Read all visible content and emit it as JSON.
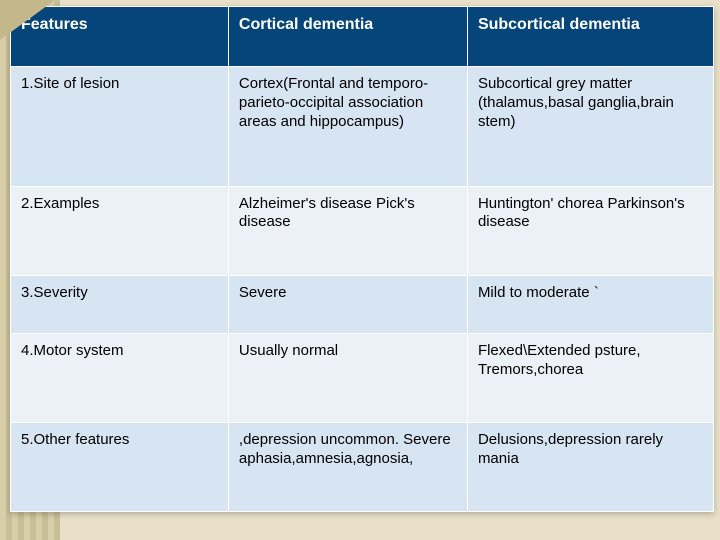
{
  "table": {
    "columns": [
      "Features",
      "Cortical dementia",
      "Subcortical dementia"
    ],
    "rows": [
      [
        "1.Site of lesion",
        "Cortex(Frontal and temporo-parieto-occipital association areas and hippocampus)",
        "Subcortical grey matter (thalamus,basal ganglia,brain stem)"
      ],
      [
        "2.Examples",
        "Alzheimer's disease Pick's disease",
        "Huntington' chorea Parkinson's disease"
      ],
      [
        "3.Severity",
        "Severe",
        "Mild to moderate `"
      ],
      [
        "4.Motor system",
        "Usually normal",
        "Flexed\\Extended psture, Tremors,chorea"
      ],
      [
        "5.Other features",
        ",depression uncommon. Severe aphasia,amnesia,agnosia,",
        "Delusions,depression\n rarely mania"
      ]
    ],
    "header_bg": "#05457a",
    "header_color": "#ffffff",
    "row_bg_odd": "#d7e4f2",
    "row_bg_even": "#ecf1f8",
    "border_color": "#ffffff",
    "font_size_header": 16,
    "font_size_cell": 15,
    "col_widths_pct": [
      31,
      34,
      35
    ]
  },
  "page_bg": "#e8e0c8"
}
